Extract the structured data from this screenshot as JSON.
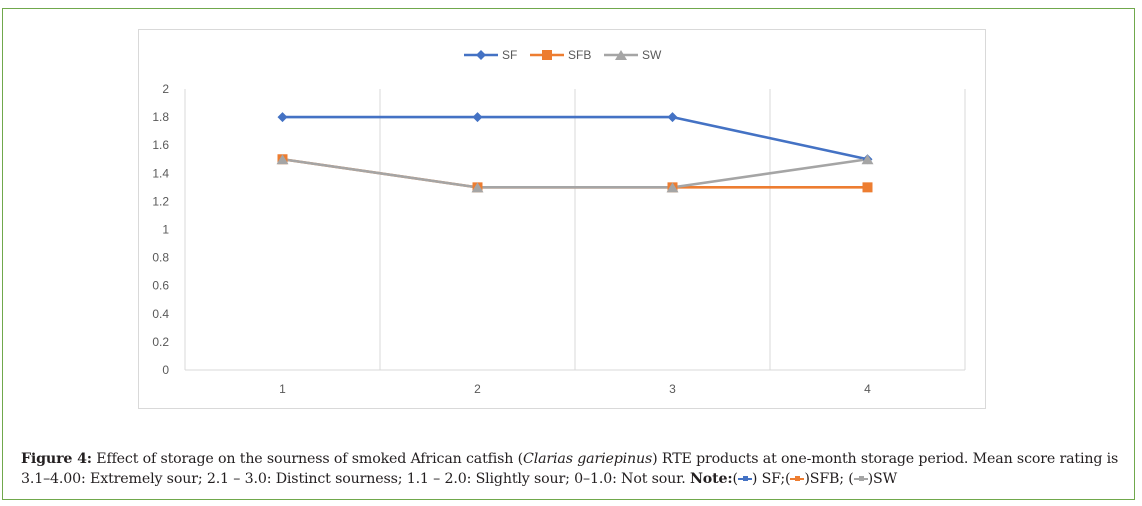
{
  "chart_data": {
    "type": "line",
    "title": "",
    "xlabel": "",
    "ylabel": "",
    "categories": [
      "1",
      "2",
      "3",
      "4"
    ],
    "ylim": [
      0,
      2
    ],
    "yticks": [
      "0",
      "0.2",
      "0.4",
      "0.6",
      "0.8",
      "1",
      "1.2",
      "1.4",
      "1.6",
      "1.8",
      "2"
    ],
    "grid": "vertical",
    "legend_position": "top",
    "series": [
      {
        "name": "SF",
        "color": "#4472c4",
        "marker": "diamond",
        "values": [
          1.8,
          1.8,
          1.8,
          1.5
        ]
      },
      {
        "name": "SFB",
        "color": "#ed7d31",
        "marker": "square",
        "values": [
          1.5,
          1.3,
          1.3,
          1.3
        ]
      },
      {
        "name": "SW",
        "color": "#a5a5a5",
        "marker": "triangle",
        "values": [
          1.5,
          1.3,
          1.3,
          1.5
        ]
      }
    ]
  },
  "caption": {
    "figure_label": "Figure 4:",
    "text_before_italic": " Effect of storage on the sourness of smoked African catfish (",
    "italic": "Clarias gariepinus",
    "text_after_italic": ") RTE products at one-month storage period. Mean score rating is 3.1–4.00: Extremely sour; 2.1 – 3.0: Distinct sourness; 1.1 – 2.0: Slightly sour; 0–1.0: Not sour. ",
    "note_label": "Note:",
    "note_open_1": "(",
    "note_sf": ") SF;(",
    "note_sfb": ")SFB; (",
    "note_sw": ")SW"
  }
}
